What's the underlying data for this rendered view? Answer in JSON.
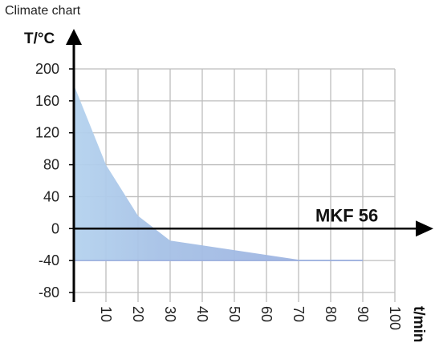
{
  "chart_data": {
    "type": "area",
    "title": "Climate chart",
    "ylabel": "T/°C",
    "xlabel": "t/min",
    "annotation": "MKF 56",
    "ylim": [
      -80,
      200
    ],
    "xlim": [
      0,
      100
    ],
    "yticks": [
      "200",
      "160",
      "120",
      "80",
      "40",
      "0",
      "-40",
      "-80"
    ],
    "xticks": [
      "10",
      "20",
      "30",
      "40",
      "50",
      "60",
      "70",
      "80",
      "90",
      "100"
    ],
    "grid": true,
    "colors": {
      "fill_light": "#b4d2ee",
      "fill_mid": "#a6c1e6",
      "fill_dark": "#9aaedf",
      "grid": "#bdbdbd",
      "axis": "#000000"
    },
    "series": [
      {
        "x": [
          0,
          10,
          20,
          30,
          70,
          90
        ],
        "y": [
          180,
          80,
          16,
          -15,
          -39,
          -39
        ],
        "baseline": -40
      }
    ]
  }
}
